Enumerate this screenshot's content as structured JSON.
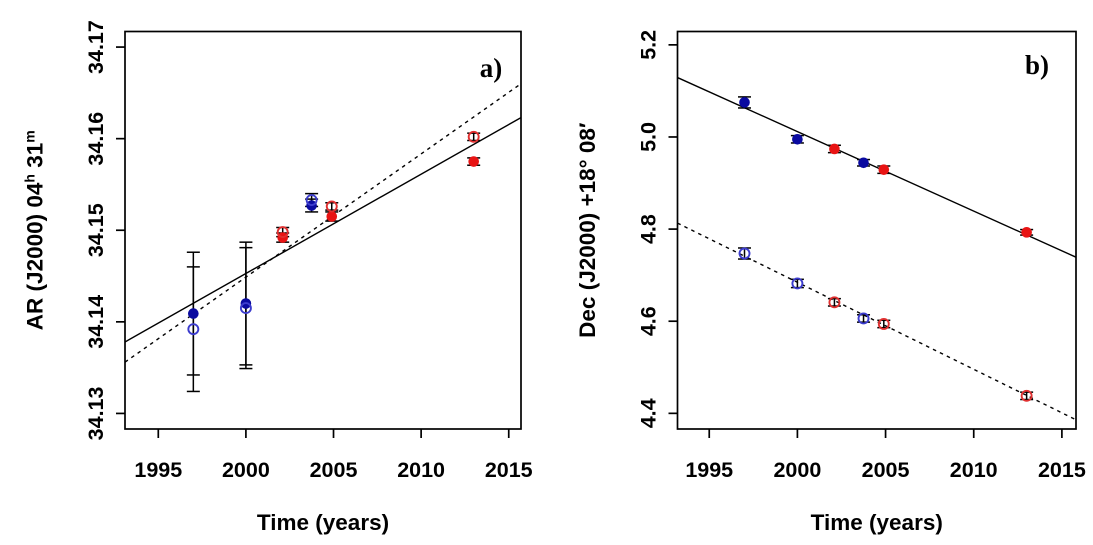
{
  "figure": {
    "background": "#ffffff",
    "description_labels": {
      "panel_a": "a)",
      "panel_b": "b)"
    }
  },
  "palette": {
    "filled_blue": "#0a0aa0",
    "filled_red": "#e81414",
    "open_blue": "#3c3ccd",
    "open_red": "#e03030",
    "error_bar": "#000000",
    "fit_line": "#000000",
    "axis": "#000000"
  },
  "chart_data": [
    {
      "type": "scatter",
      "panel_label": "a)",
      "xlabel": "Time (years)",
      "ylabel": "AR  (J2000) 04h 31m",
      "ylabel_parts": [
        {
          "text": "AR  (J2000) 04",
          "sup": false
        },
        {
          "text": "h",
          "sup": true
        },
        {
          "text": " 31",
          "sup": false
        },
        {
          "text": "m",
          "sup": true
        }
      ],
      "xlim": [
        1993.1,
        2015.7
      ],
      "ylim": [
        34.1283,
        34.1717
      ],
      "xticks": [
        1995,
        2000,
        2005,
        2010,
        2015
      ],
      "xtick_labels": [
        "1995",
        "2000",
        "2005",
        "2010",
        "2015"
      ],
      "yticks": [
        34.13,
        34.14,
        34.15,
        34.16,
        34.17
      ],
      "ytick_labels": [
        "34.13",
        "34.14",
        "34.15",
        "34.16",
        "34.17"
      ],
      "grid": false,
      "legend": null,
      "fits": [
        {
          "style": "solid",
          "x": [
            1993.1,
            2015.7
          ],
          "y": [
            34.1378,
            34.1623
          ]
        },
        {
          "style": "dashed",
          "x": [
            1993.1,
            2015.7
          ],
          "y": [
            34.1356,
            34.166
          ]
        }
      ],
      "series": [
        {
          "name": "filled symbols (solid-line fit)",
          "marker": "filled",
          "points": [
            {
              "x": 1997.0,
              "y": 34.1409,
              "err": 0.0067,
              "color": "blue"
            },
            {
              "x": 2000.0,
              "y": 34.142,
              "err": 0.0067,
              "color": "blue"
            },
            {
              "x": 2002.1,
              "y": 34.1492,
              "err": 0.0005,
              "color": "red"
            },
            {
              "x": 2003.75,
              "y": 34.1527,
              "err": 0.0007,
              "color": "blue"
            },
            {
              "x": 2004.9,
              "y": 34.1515,
              "err": 0.0005,
              "color": "red"
            },
            {
              "x": 2013.0,
              "y": 34.1575,
              "err": 0.0004,
              "color": "red"
            }
          ]
        },
        {
          "name": "open symbols (dashed-line fit)",
          "marker": "open",
          "points": [
            {
              "x": 1997.0,
              "y": 34.1392,
              "err": 0.0068,
              "color": "blue"
            },
            {
              "x": 2000.0,
              "y": 34.1415,
              "err": 0.0066,
              "color": "blue"
            },
            {
              "x": 2002.1,
              "y": 34.1498,
              "err": 0.0005,
              "color": "red"
            },
            {
              "x": 2003.75,
              "y": 34.1533,
              "err": 0.0007,
              "color": "blue"
            },
            {
              "x": 2004.9,
              "y": 34.1526,
              "err": 0.0004,
              "color": "red"
            },
            {
              "x": 2013.0,
              "y": 34.1602,
              "err": 0.0004,
              "color": "red"
            }
          ]
        }
      ]
    },
    {
      "type": "scatter",
      "panel_label": "b)",
      "xlabel": "Time (years)",
      "ylabel": "Dec (J2000) +18° 08′",
      "ylabel_parts": [
        {
          "text": "Dec (J2000) +18° 08′",
          "sup": false
        }
      ],
      "xlim": [
        1993.2,
        2015.8
      ],
      "ylim": [
        4.366,
        5.229
      ],
      "xticks": [
        1995,
        2000,
        2005,
        2010,
        2015
      ],
      "xtick_labels": [
        "1995",
        "2000",
        "2005",
        "2010",
        "2015"
      ],
      "yticks": [
        4.4,
        4.6,
        4.8,
        5.0,
        5.2
      ],
      "ytick_labels": [
        "4.4",
        "4.6",
        "4.8",
        "5.0",
        "5.2"
      ],
      "grid": false,
      "legend": null,
      "fits": [
        {
          "style": "solid",
          "x": [
            1993.2,
            2015.8
          ],
          "y": [
            5.129,
            4.739
          ]
        },
        {
          "style": "dashed",
          "x": [
            1993.2,
            2015.8
          ],
          "y": [
            4.813,
            4.386
          ]
        }
      ],
      "series": [
        {
          "name": "filled symbols (solid-line fit)",
          "marker": "filled",
          "points": [
            {
              "x": 1997.0,
              "y": 5.075,
              "err": 0.012,
              "color": "blue"
            },
            {
              "x": 2000.0,
              "y": 4.995,
              "err": 0.008,
              "color": "blue"
            },
            {
              "x": 2002.1,
              "y": 4.974,
              "err": 0.008,
              "color": "red"
            },
            {
              "x": 2003.75,
              "y": 4.944,
              "err": 0.007,
              "color": "blue"
            },
            {
              "x": 2004.9,
              "y": 4.929,
              "err": 0.008,
              "color": "red"
            },
            {
              "x": 2013.0,
              "y": 4.793,
              "err": 0.006,
              "color": "red"
            }
          ]
        },
        {
          "name": "open symbols (dashed-line fit)",
          "marker": "open",
          "points": [
            {
              "x": 1997.0,
              "y": 4.747,
              "err": 0.012,
              "color": "blue"
            },
            {
              "x": 2000.0,
              "y": 4.682,
              "err": 0.009,
              "color": "blue"
            },
            {
              "x": 2002.1,
              "y": 4.641,
              "err": 0.008,
              "color": "red"
            },
            {
              "x": 2003.75,
              "y": 4.606,
              "err": 0.008,
              "color": "blue"
            },
            {
              "x": 2004.9,
              "y": 4.594,
              "err": 0.008,
              "color": "red"
            },
            {
              "x": 2013.0,
              "y": 4.438,
              "err": 0.008,
              "color": "red"
            }
          ]
        }
      ]
    }
  ]
}
